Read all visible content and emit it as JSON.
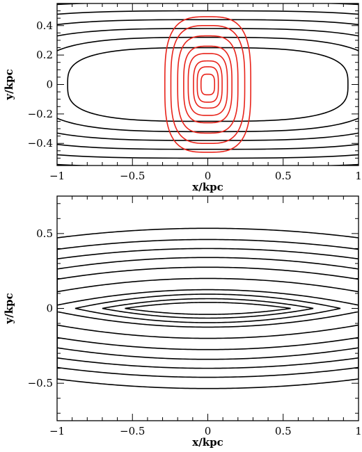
{
  "chart_data": [
    {
      "type": "contour",
      "xlabel": "x/kpc",
      "ylabel": "y/kpc",
      "xlim": [
        -1,
        1
      ],
      "ylim": [
        -0.55,
        0.55
      ],
      "x_ticks": [
        {
          "value": -1,
          "label": "−1"
        },
        {
          "value": -0.5,
          "label": "−0.5"
        },
        {
          "value": 0,
          "label": "0"
        },
        {
          "value": 0.5,
          "label": "0.5"
        },
        {
          "value": 1,
          "label": "1"
        }
      ],
      "y_ticks": [
        {
          "value": -0.4,
          "label": "−0.4"
        },
        {
          "value": -0.2,
          "label": "−0.2"
        },
        {
          "value": 0,
          "label": "0"
        },
        {
          "value": 0.2,
          "label": "0.2"
        },
        {
          "value": 0.4,
          "label": "0.4"
        }
      ],
      "series": [
        {
          "color": "#000000",
          "shape": "elongated-along-x",
          "contours": [
            {
              "a": 0.93,
              "b": 0.25
            },
            {
              "a": 1.14,
              "b": 0.32
            },
            {
              "a": 1.37,
              "b": 0.38
            },
            {
              "a": 1.6,
              "b": 0.44
            },
            {
              "a": 1.85,
              "b": 0.5
            },
            {
              "a": 2.1,
              "b": 0.56
            },
            {
              "a": 2.35,
              "b": 0.62
            }
          ]
        },
        {
          "color": "#e8231a",
          "shape": "elongated-along-y",
          "contours": [
            {
              "a": 0.045,
              "b": 0.07
            },
            {
              "a": 0.07,
              "b": 0.12
            },
            {
              "a": 0.095,
              "b": 0.16
            },
            {
              "a": 0.13,
              "b": 0.21
            },
            {
              "a": 0.16,
              "b": 0.26
            },
            {
              "a": 0.2,
              "b": 0.33
            },
            {
              "a": 0.245,
              "b": 0.4
            },
            {
              "a": 0.285,
              "b": 0.46
            }
          ]
        }
      ]
    },
    {
      "type": "contour",
      "xlabel": "x/kpc",
      "ylabel": "y/kpc",
      "xlim": [
        -1,
        1
      ],
      "ylim": [
        -0.75,
        0.75
      ],
      "x_ticks": [
        {
          "value": -1,
          "label": "−1"
        },
        {
          "value": -0.5,
          "label": "−0.5"
        },
        {
          "value": 0,
          "label": "0"
        },
        {
          "value": 0.5,
          "label": "0.5"
        },
        {
          "value": 1,
          "label": "1"
        }
      ],
      "y_ticks": [
        {
          "value": -0.5,
          "label": "−0.5"
        },
        {
          "value": 0,
          "label": "0"
        },
        {
          "value": 0.5,
          "label": "0.5"
        }
      ],
      "series": [
        {
          "color": "#000000",
          "shape": "lens",
          "contours": [
            {
              "a": 0.55,
              "b": 0.04
            },
            {
              "a": 0.7,
              "b": 0.065
            },
            {
              "a": 0.88,
              "b": 0.095
            },
            {
              "a": 1.1,
              "b": 0.125
            },
            {
              "a": 1.5,
              "b": 0.2
            },
            {
              "a": 1.85,
              "b": 0.275
            },
            {
              "a": 2.1,
              "b": 0.34
            },
            {
              "a": 2.4,
              "b": 0.4
            },
            {
              "a": 2.65,
              "b": 0.46
            },
            {
              "a": 2.9,
              "b": 0.535
            }
          ]
        }
      ]
    }
  ]
}
